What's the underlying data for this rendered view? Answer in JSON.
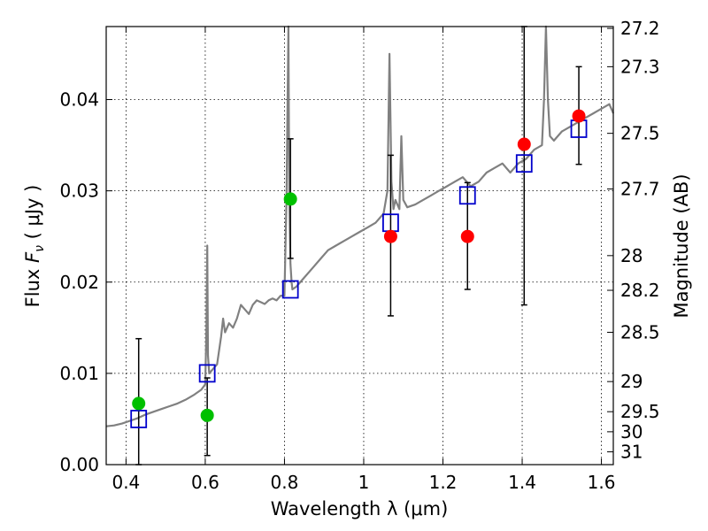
{
  "chart_data": {
    "type": "scatter",
    "xlabel": "Wavelength  λ (μm)",
    "ylabel": "Flux  F_ν  ( μJy )",
    "ylabel_parts": {
      "pre": "Flux  ",
      "sym": "F",
      "sub": "ν",
      "post": "  ( μJy )"
    },
    "y2label": "Magnitude (AB)",
    "xlim": [
      0.35,
      1.63
    ],
    "ylim": [
      0.0,
      0.048
    ],
    "grid": true,
    "x_ticks": [
      {
        "value": 0.4,
        "label": "0.4"
      },
      {
        "value": 0.6,
        "label": "0.6"
      },
      {
        "value": 0.8,
        "label": "0.8"
      },
      {
        "value": 1.0,
        "label": "1"
      },
      {
        "value": 1.2,
        "label": "1.2"
      },
      {
        "value": 1.4,
        "label": "1.4"
      },
      {
        "value": 1.6,
        "label": "1.6"
      }
    ],
    "y_ticks": [
      {
        "value": 0.0,
        "label": "0.00"
      },
      {
        "value": 0.01,
        "label": "0.01"
      },
      {
        "value": 0.02,
        "label": "0.02"
      },
      {
        "value": 0.03,
        "label": "0.03"
      },
      {
        "value": 0.04,
        "label": "0.04"
      }
    ],
    "mag_ticks": [
      {
        "label": "27.2",
        "flux": 0.0478
      },
      {
        "label": "27.3",
        "flux": 0.0436
      },
      {
        "label": "27.5",
        "flux": 0.0363
      },
      {
        "label": "27.7",
        "flux": 0.0302
      },
      {
        "label": "28",
        "flux": 0.0229
      },
      {
        "label": "28.2",
        "flux": 0.0191
      },
      {
        "label": "28.5",
        "flux": 0.0145
      },
      {
        "label": "29",
        "flux": 0.0091
      },
      {
        "label": "29.5",
        "flux": 0.0058
      },
      {
        "label": "30",
        "flux": 0.0036
      },
      {
        "label": "31",
        "flux": 0.0014
      }
    ],
    "spectrum": {
      "color": "#808080",
      "x": [
        0.35,
        0.37,
        0.39,
        0.41,
        0.43,
        0.45,
        0.47,
        0.49,
        0.51,
        0.53,
        0.55,
        0.57,
        0.59,
        0.6,
        0.603,
        0.605,
        0.607,
        0.61,
        0.62,
        0.63,
        0.64,
        0.645,
        0.65,
        0.66,
        0.67,
        0.68,
        0.69,
        0.7,
        0.71,
        0.72,
        0.73,
        0.74,
        0.75,
        0.76,
        0.77,
        0.78,
        0.79,
        0.8,
        0.805,
        0.81,
        0.812,
        0.815,
        0.818,
        0.82,
        0.83,
        0.85,
        0.87,
        0.89,
        0.91,
        0.93,
        0.95,
        0.97,
        0.99,
        1.01,
        1.03,
        1.05,
        1.06,
        1.065,
        1.07,
        1.075,
        1.08,
        1.09,
        1.095,
        1.1,
        1.11,
        1.13,
        1.15,
        1.17,
        1.19,
        1.21,
        1.23,
        1.25,
        1.27,
        1.29,
        1.31,
        1.33,
        1.35,
        1.37,
        1.39,
        1.41,
        1.43,
        1.45,
        1.455,
        1.46,
        1.465,
        1.47,
        1.48,
        1.5,
        1.52,
        1.54,
        1.56,
        1.58,
        1.6,
        1.62,
        1.63
      ],
      "y": [
        0.0042,
        0.0043,
        0.0045,
        0.0048,
        0.0051,
        0.0055,
        0.0058,
        0.0061,
        0.0064,
        0.0067,
        0.0071,
        0.0076,
        0.0082,
        0.0088,
        0.015,
        0.024,
        0.012,
        0.01,
        0.0105,
        0.011,
        0.014,
        0.016,
        0.0145,
        0.0155,
        0.015,
        0.016,
        0.0175,
        0.017,
        0.0165,
        0.0175,
        0.018,
        0.0178,
        0.0176,
        0.018,
        0.0182,
        0.018,
        0.0185,
        0.0185,
        0.029,
        0.048,
        0.03,
        0.022,
        0.02,
        0.0192,
        0.0195,
        0.0205,
        0.0215,
        0.0225,
        0.0235,
        0.024,
        0.0245,
        0.025,
        0.0255,
        0.026,
        0.0265,
        0.0275,
        0.03,
        0.045,
        0.031,
        0.028,
        0.029,
        0.028,
        0.036,
        0.029,
        0.0282,
        0.0285,
        0.029,
        0.0295,
        0.03,
        0.0305,
        0.031,
        0.0315,
        0.0305,
        0.031,
        0.032,
        0.0325,
        0.033,
        0.032,
        0.033,
        0.0335,
        0.0345,
        0.035,
        0.04,
        0.048,
        0.04,
        0.036,
        0.0355,
        0.0365,
        0.037,
        0.0375,
        0.038,
        0.0385,
        0.039,
        0.0395,
        0.0385
      ]
    },
    "model_points": {
      "color": "#0000cc",
      "x": [
        0.432,
        0.605,
        0.815,
        1.068,
        1.262,
        1.405,
        1.543
      ],
      "y": [
        0.005,
        0.01,
        0.0192,
        0.0265,
        0.0295,
        0.033,
        0.0368
      ]
    },
    "detections": {
      "color": "#00c000",
      "x": [
        0.432,
        0.605,
        0.815
      ],
      "y": [
        0.0067,
        0.0054,
        0.0291
      ],
      "err_low": [
        0.0,
        0.001,
        0.0226
      ],
      "err_high": [
        0.0138,
        0.0095,
        0.0357
      ]
    },
    "upper_limits": {
      "color": "#ff0000",
      "x": [
        1.068,
        1.262,
        1.405,
        1.543
      ],
      "y": [
        0.025,
        0.025,
        0.0351,
        0.0382
      ],
      "err_low": [
        0.0163,
        0.0192,
        0.0175,
        0.0329
      ],
      "err_high": [
        0.0339,
        0.0309,
        0.048,
        0.0436
      ]
    }
  }
}
